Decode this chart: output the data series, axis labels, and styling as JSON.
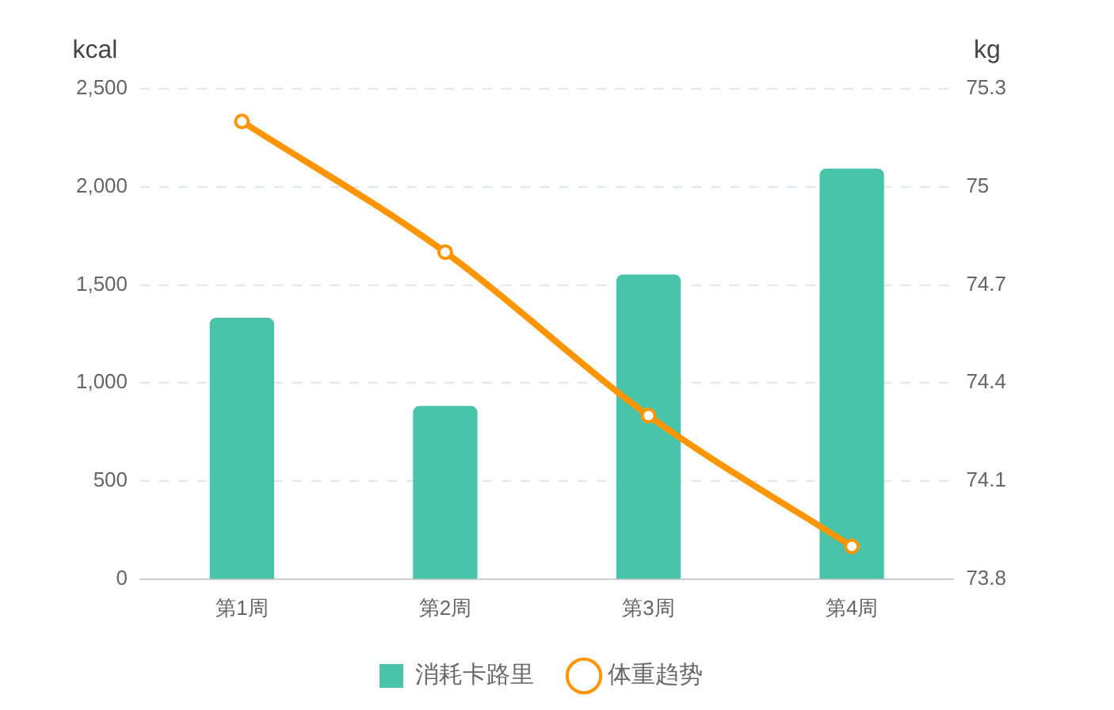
{
  "chart_data": {
    "type": "bar",
    "ylabel": "kcal",
    "y2label": "kg",
    "categories": [
      "第1周",
      "第2周",
      "第3周",
      "第4周"
    ],
    "series": [
      {
        "name": "消耗卡路里",
        "color": "#47c4a9",
        "values": [
          1330,
          880,
          1550,
          2090
        ]
      },
      {
        "name": "体重趋势",
        "type": "line",
        "axis": "y2",
        "color": "#ff9500",
        "marker": "circle",
        "values": [
          75.2,
          74.8,
          74.3,
          73.9
        ]
      }
    ],
    "ylim": [
      0,
      2500
    ],
    "yticks": [
      0,
      500,
      {
        "value": 1000,
        "label": "1,000"
      },
      {
        "value": 1500,
        "label": "1,500"
      },
      {
        "value": 2000,
        "label": "2,000"
      },
      {
        "value": 2500,
        "label": "2,500"
      }
    ],
    "y2lim": [
      73.8,
      75.3
    ],
    "y2ticks": [
      73.8,
      74.1,
      74.4,
      74.7,
      75,
      75.3
    ],
    "grid": "y",
    "legend": "bottom"
  }
}
